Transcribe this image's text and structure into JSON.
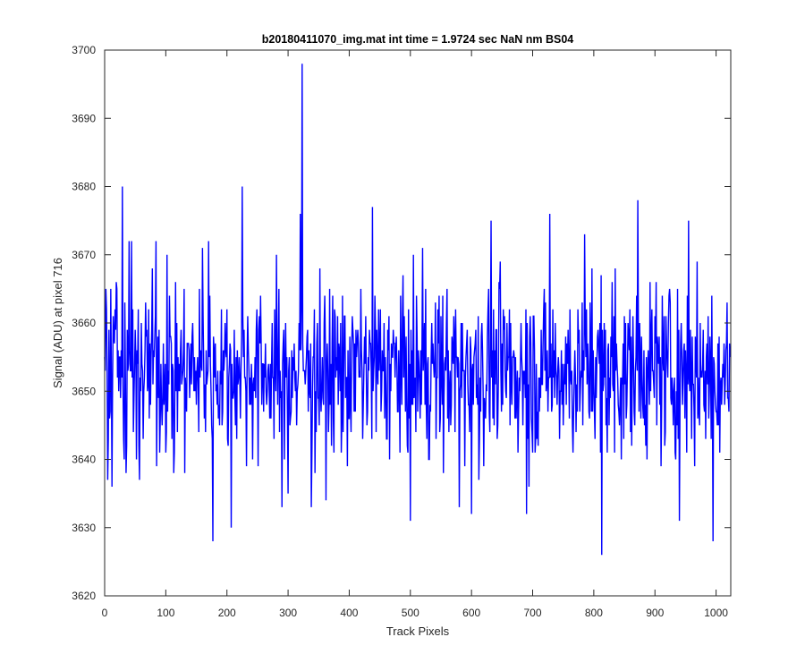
{
  "chart_data": {
    "type": "line",
    "title": "b20180411070_img.mat int time = 1.9724 sec  NaN nm BS04",
    "xlabel": "Track Pixels",
    "ylabel": "Signal (ADU) at pixel 716",
    "xlim": [
      0,
      1024
    ],
    "ylim": [
      3620,
      3700
    ],
    "xticks": [
      0,
      100,
      200,
      300,
      400,
      500,
      600,
      700,
      800,
      900,
      1000
    ],
    "yticks": [
      3620,
      3630,
      3640,
      3650,
      3660,
      3670,
      3680,
      3690,
      3700
    ],
    "grid": false,
    "line_color": "#0000ff",
    "series": [
      {
        "name": "",
        "n_points": 1024,
        "baseline": 3653,
        "values_sampled": [
          {
            "x": 0,
            "y": 3655
          },
          {
            "x": 5,
            "y": 3637
          },
          {
            "x": 10,
            "y": 3665
          },
          {
            "x": 29,
            "y": 3680
          },
          {
            "x": 35,
            "y": 3638
          },
          {
            "x": 40,
            "y": 3672
          },
          {
            "x": 44,
            "y": 3672
          },
          {
            "x": 52,
            "y": 3640
          },
          {
            "x": 84,
            "y": 3672
          },
          {
            "x": 102,
            "y": 3670
          },
          {
            "x": 113,
            "y": 3638
          },
          {
            "x": 160,
            "y": 3671
          },
          {
            "x": 170,
            "y": 3672
          },
          {
            "x": 177,
            "y": 3628
          },
          {
            "x": 207,
            "y": 3630
          },
          {
            "x": 225,
            "y": 3680
          },
          {
            "x": 290,
            "y": 3633
          },
          {
            "x": 300,
            "y": 3635
          },
          {
            "x": 320,
            "y": 3676
          },
          {
            "x": 323,
            "y": 3698
          },
          {
            "x": 338,
            "y": 3633
          },
          {
            "x": 362,
            "y": 3634
          },
          {
            "x": 438,
            "y": 3677
          },
          {
            "x": 500,
            "y": 3631
          },
          {
            "x": 520,
            "y": 3671
          },
          {
            "x": 580,
            "y": 3633
          },
          {
            "x": 600,
            "y": 3632
          },
          {
            "x": 632,
            "y": 3675
          },
          {
            "x": 690,
            "y": 3632
          },
          {
            "x": 728,
            "y": 3676
          },
          {
            "x": 785,
            "y": 3673
          },
          {
            "x": 797,
            "y": 3668
          },
          {
            "x": 813,
            "y": 3626
          },
          {
            "x": 835,
            "y": 3668
          },
          {
            "x": 872,
            "y": 3678
          },
          {
            "x": 940,
            "y": 3631
          },
          {
            "x": 955,
            "y": 3675
          },
          {
            "x": 995,
            "y": 3628
          },
          {
            "x": 1023,
            "y": 3655
          }
        ]
      }
    ]
  }
}
